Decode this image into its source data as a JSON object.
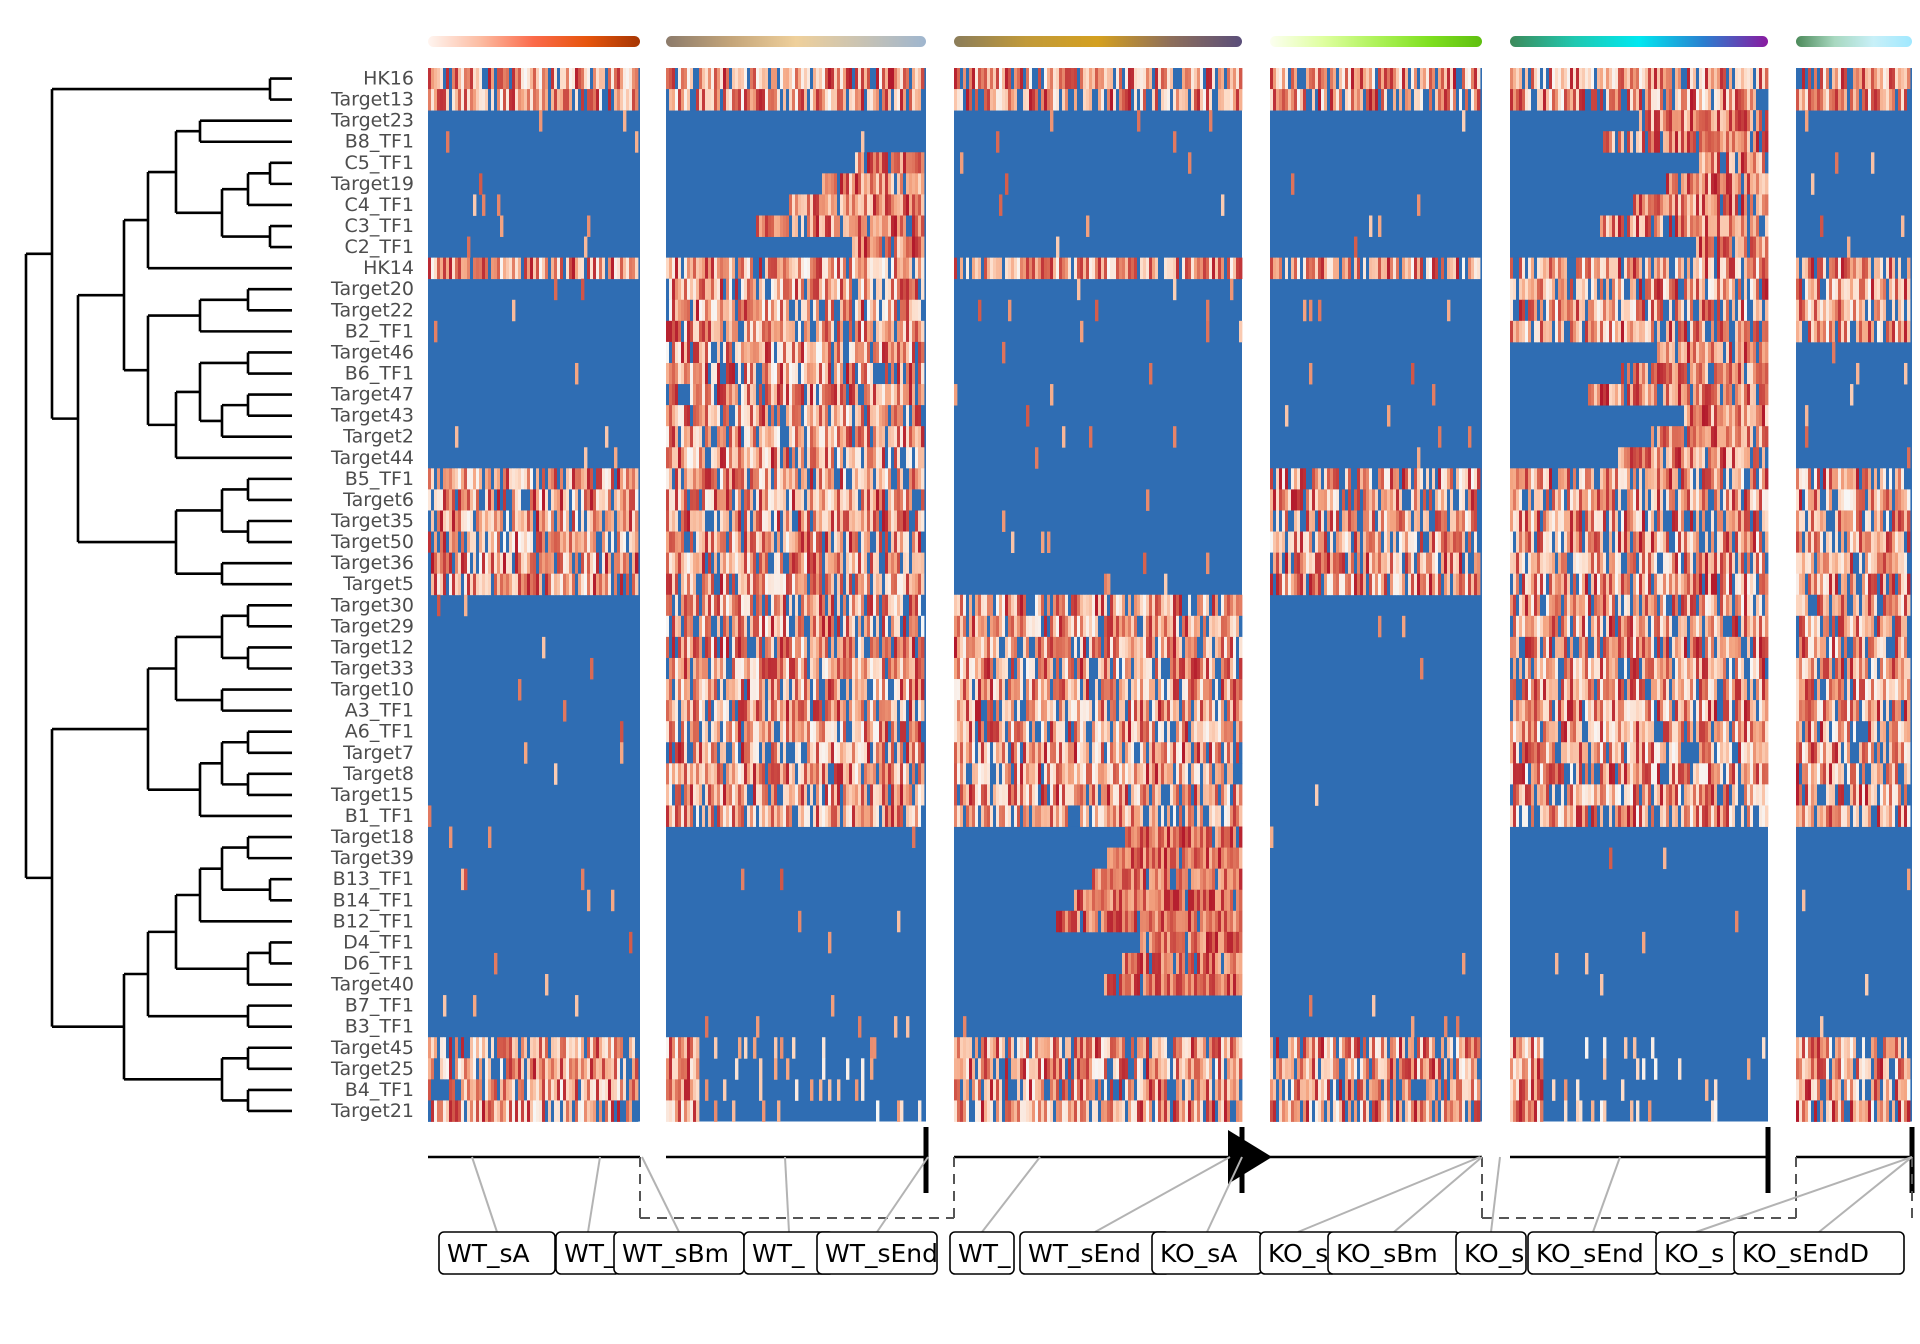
{
  "chart_data": {
    "type": "heatmap",
    "title": "",
    "xlabel": "",
    "ylabel": "",
    "color_scale": {
      "low": "#2c66b0",
      "mid": "#f7f7f7",
      "high": "#b2182b"
    },
    "rows": [
      "HK16",
      "Target13",
      "Target23",
      "B8_TF1",
      "C5_TF1",
      "Target19",
      "C4_TF1",
      "C3_TF1",
      "C2_TF1",
      "HK14",
      "Target20",
      "Target22",
      "B2_TF1",
      "Target46",
      "B6_TF1",
      "Target47",
      "Target43",
      "Target2",
      "Target44",
      "B5_TF1",
      "Target6",
      "Target35",
      "Target50",
      "Target36",
      "Target5",
      "Target30",
      "Target29",
      "Target12",
      "Target33",
      "Target10",
      "A3_TF1",
      "A6_TF1",
      "Target7",
      "Target8",
      "Target15",
      "B1_TF1",
      "Target18",
      "Target39",
      "B13_TF1",
      "B14_TF1",
      "B12_TF1",
      "D4_TF1",
      "D6_TF1",
      "Target40",
      "B7_TF1",
      "B3_TF1",
      "Target45",
      "Target25",
      "B4_TF1",
      "Target21"
    ],
    "panels": [
      {
        "name": "WT_sA",
        "bar_colors": [
          "#fff5f0",
          "#fcbba1",
          "#fb6a4a",
          "#e6550d",
          "#a63603"
        ]
      },
      {
        "name": "WT_sBm",
        "bar_colors": [
          "#8c7b6b",
          "#c4a57a",
          "#efd09b",
          "#c9c3b3",
          "#9fb6cf"
        ]
      },
      {
        "name": "WT_sEndA",
        "bar_colors": [
          "#8b7d5a",
          "#c19a3a",
          "#d4a020",
          "#8e6f5a",
          "#5a4e7a"
        ]
      },
      {
        "name": "KO_sA",
        "bar_colors": [
          "#fcfff0",
          "#dfffa0",
          "#aef25a",
          "#7fe020",
          "#5fbf10"
        ]
      },
      {
        "name": "KO_sBm",
        "bar_colors": [
          "#3c8a5a",
          "#20c8b0",
          "#00e8f0",
          "#2a7fd0",
          "#8a1aa0"
        ]
      },
      {
        "name": "KO_sEndD",
        "bar_colors": [
          "#4c8a5a",
          "#a8d8c0",
          "#c8f0f8",
          "#a0e8ff"
        ]
      }
    ],
    "row_blocks": {
      "WT_sA": [
        [
          "r",
          0,
          2
        ],
        [
          "b",
          2,
          9
        ],
        [
          "r",
          9,
          10
        ],
        [
          "b",
          10,
          19
        ],
        [
          "r",
          19,
          25
        ],
        [
          "b",
          25,
          36
        ],
        [
          "b",
          36,
          46
        ],
        [
          "r",
          46,
          50
        ]
      ],
      "WT_sBm": [
        [
          "r",
          0,
          2
        ],
        [
          "b",
          2,
          4
        ],
        [
          "tr",
          4,
          9
        ],
        [
          "r",
          9,
          13
        ],
        [
          "r",
          13,
          19
        ],
        [
          "r",
          19,
          36
        ],
        [
          "b",
          36,
          46
        ],
        [
          "br",
          46,
          50
        ]
      ],
      "WT_sEndA": [
        [
          "r",
          0,
          2
        ],
        [
          "b",
          2,
          4
        ],
        [
          "b",
          4,
          9
        ],
        [
          "r",
          9,
          10
        ],
        [
          "b",
          10,
          13
        ],
        [
          "b",
          13,
          19
        ],
        [
          "b",
          19,
          25
        ],
        [
          "r",
          25,
          36
        ],
        [
          "ramp",
          36,
          44
        ],
        [
          "b",
          44,
          46
        ],
        [
          "r",
          46,
          50
        ]
      ],
      "KO_sA": [
        [
          "r",
          0,
          2
        ],
        [
          "b",
          2,
          9
        ],
        [
          "r",
          9,
          10
        ],
        [
          "b",
          10,
          19
        ],
        [
          "r",
          19,
          25
        ],
        [
          "b",
          25,
          36
        ],
        [
          "b",
          36,
          46
        ],
        [
          "r",
          46,
          50
        ]
      ],
      "KO_sBm": [
        [
          "r",
          0,
          2
        ],
        [
          "tr",
          2,
          9
        ],
        [
          "r",
          9,
          10
        ],
        [
          "r",
          10,
          13
        ],
        [
          "tr",
          13,
          19
        ],
        [
          "r",
          19,
          36
        ],
        [
          "b",
          36,
          46
        ],
        [
          "br",
          46,
          50
        ]
      ],
      "KO_sEndD": [
        [
          "r",
          0,
          2
        ],
        [
          "b",
          2,
          9
        ],
        [
          "r",
          9,
          10
        ],
        [
          "r",
          10,
          13
        ],
        [
          "b",
          13,
          19
        ],
        [
          "r",
          19,
          36
        ],
        [
          "b",
          36,
          46
        ],
        [
          "r",
          46,
          50
        ]
      ]
    },
    "tree_nodes": [
      [
        "",
        "",
        "HK16",
        "Target13"
      ],
      [
        "C3C2",
        "",
        "C3_TF1",
        "C2_TF1"
      ],
      [
        "C5T19",
        "",
        "C5_TF1",
        "Target19"
      ],
      [
        "C5T19C4",
        "",
        "C5T19",
        "C4_TF1"
      ],
      [
        "cgrp",
        "",
        "C5T19C4",
        "C3C2"
      ],
      [
        "T23B8",
        "",
        "Target23",
        "B8_TF1"
      ],
      [
        "cgrp2",
        "",
        "T23B8",
        "cgrp"
      ],
      [
        "cgrp3",
        "",
        "cgrp2",
        "HK14"
      ],
      [
        "T20T22",
        "",
        "Target20",
        "Target22"
      ],
      [
        "T20T22B2",
        "",
        "T20T22",
        "B2_TF1"
      ],
      [
        "T46B6",
        "",
        "Target46",
        "B6_TF1"
      ],
      [
        "T47T43",
        "",
        "Target47",
        "Target43"
      ],
      [
        "T47T43T2",
        "",
        "T47T43",
        "Target2"
      ],
      [
        "t46grp",
        "",
        "T46B6",
        "T47T43T2"
      ],
      [
        "t46grp2",
        "",
        "t46grp",
        "Target44"
      ],
      [
        "mid1",
        "",
        "T20T22B2",
        "t46grp2"
      ],
      [
        "B5T6",
        "",
        "B5_TF1",
        "Target6"
      ],
      [
        "T35T50",
        "",
        "Target35",
        "Target50"
      ],
      [
        "b5grp",
        "",
        "B5T6",
        "T35T50"
      ],
      [
        "T36T5",
        "",
        "Target36",
        "Target5"
      ],
      [
        "b5grp2",
        "",
        "b5grp",
        "T36T5"
      ],
      [
        "upper1",
        "",
        "mid1",
        "cgrp3"
      ],
      [
        "upperL",
        "",
        "upper1",
        "b5grp2"
      ],
      [
        "top",
        "",
        "HK16Target13",
        "upperL"
      ],
      [
        "T30T29",
        "",
        "Target30",
        "Target29"
      ],
      [
        "T12T33",
        "",
        "Target12",
        "Target33"
      ],
      [
        "t30grp",
        "",
        "T30T29",
        "T12T33"
      ],
      [
        "T10A3",
        "",
        "Target10",
        "A3_TF1"
      ],
      [
        "t30grp2",
        "",
        "t30grp",
        "T10A3"
      ],
      [
        "A6T7",
        "",
        "A6_TF1",
        "Target7"
      ],
      [
        "T8T15",
        "",
        "Target8",
        "Target15"
      ],
      [
        "a6grp",
        "",
        "A6T7",
        "T8T15"
      ],
      [
        "a6grp2",
        "",
        "a6grp",
        "B1_TF1"
      ],
      [
        "midL",
        "",
        "t30grp2",
        "a6grp2"
      ],
      [
        "T18T39",
        "",
        "Target18",
        "Target39"
      ],
      [
        "B13B14",
        "",
        "B13_TF1",
        "B14_TF1"
      ],
      [
        "t18grp",
        "",
        "T18T39",
        "B13B14"
      ],
      [
        "t18grp2",
        "",
        "t18grp",
        "B12_TF1"
      ],
      [
        "D4D6",
        "",
        "D4_TF1",
        "D6_TF1"
      ],
      [
        "d4grp",
        "",
        "D4D6",
        "Target40"
      ],
      [
        "bgrp",
        "",
        "t18grp2",
        "d4grp"
      ],
      [
        "B7B3",
        "",
        "B7_TF1",
        "B3_TF1"
      ],
      [
        "bgrp2",
        "",
        "bgrp",
        "B7B3"
      ],
      [
        "T45T25",
        "",
        "Target45",
        "Target25"
      ],
      [
        "B4T21",
        "",
        "B4_TF1",
        "Target21"
      ],
      [
        "t45grp",
        "",
        "T45T25",
        "B4T21"
      ],
      [
        "lowB",
        "",
        "bgrp2",
        "t45grp"
      ],
      [
        "lower",
        "",
        "midL",
        "lowB"
      ],
      [
        "root",
        "",
        "top",
        "lower"
      ]
    ],
    "lineage_labels": [
      "WT_sA",
      "WT_",
      "WT_sBm",
      "WT_",
      "WT_sEnd",
      "WT_",
      "WT_sEnd",
      "KO_sA",
      "KO_s",
      "KO_sBm",
      "KO_s",
      "KO_sEnd",
      "KO_s",
      "KO_sEndD"
    ]
  }
}
